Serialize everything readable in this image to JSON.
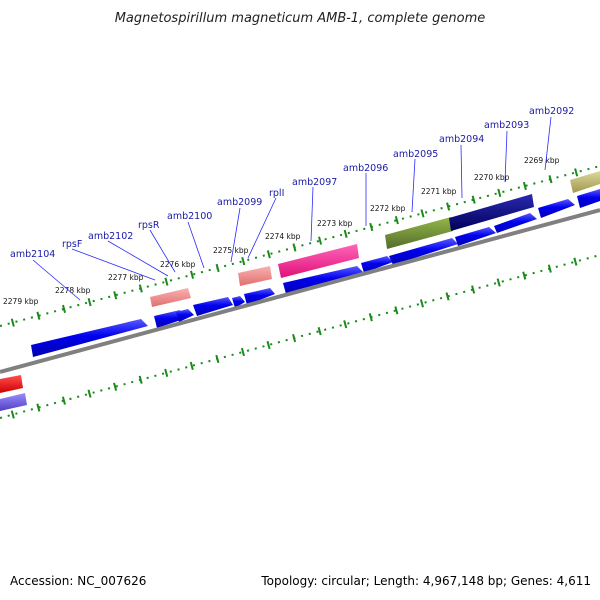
{
  "title": "Magnetospirillum magneticum AMB-1, complete genome",
  "footer": {
    "accession": "Accession: NC_007626",
    "summary": "Topology: circular; Length: 4,967,148 bp; Genes: 4,611"
  },
  "colors": {
    "forward_gene": "#0000ee",
    "rna_gene": "#f08080",
    "backbone": "#808080",
    "ticks": "#1a8a1a",
    "label_text": "#1a1aa8",
    "label_line": "#2a2aff",
    "magenta": "#ff1493",
    "olive": "#6b8e23",
    "navy": "#000080",
    "khaki": "#bdb76b",
    "red": "#ff0000",
    "purple": "#7b68ee"
  },
  "gene_labels": [
    "amb2104",
    "rpsF",
    "amb2102",
    "rpsR",
    "amb2100",
    "amb2099",
    "rplI",
    "amb2097",
    "amb2096",
    "amb2095",
    "amb2094",
    "amb2093",
    "amb2092"
  ],
  "kbp_labels": [
    "2279 kbp",
    "2278 kbp",
    "2277 kbp",
    "2276 kbp",
    "2275 kbp",
    "2274 kbp",
    "2273 kbp",
    "2272 kbp",
    "2271 kbp",
    "2270 kbp",
    "2269 kbp"
  ]
}
